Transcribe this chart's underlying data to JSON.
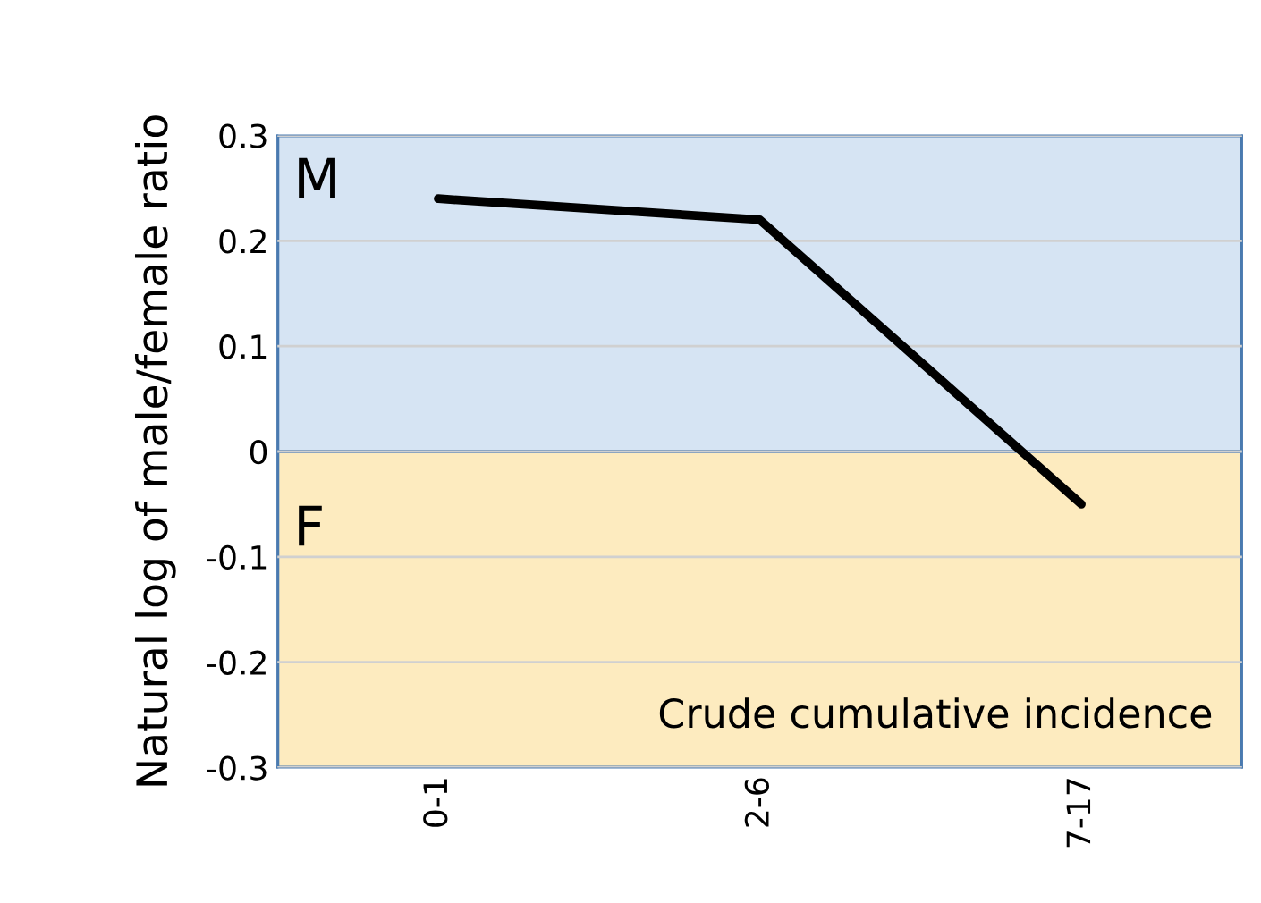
{
  "chart_data": {
    "type": "line",
    "ylabel": "Natural log of male/female ratio",
    "categories": [
      "0-1",
      "2-6",
      "7-17"
    ],
    "series": [
      {
        "color": "#000000",
        "values": [
          0.24,
          0.22,
          -0.05
        ]
      }
    ],
    "ylim": [
      -0.3,
      0.3
    ],
    "yticks": [
      -0.3,
      -0.2,
      -0.1,
      0,
      0.1,
      0.2,
      0.3
    ],
    "grid": "y",
    "marker": "none",
    "line_style": "solid",
    "legend": false,
    "bands": [
      {
        "axis": "y",
        "from": 0,
        "to": 0.3,
        "label": "M",
        "color": "#d6e4f3"
      },
      {
        "axis": "y",
        "from": -0.3,
        "to": 0,
        "label": "F",
        "color": "#fdebbf"
      }
    ],
    "annotations": [
      "Crude cumulative incidence"
    ]
  }
}
